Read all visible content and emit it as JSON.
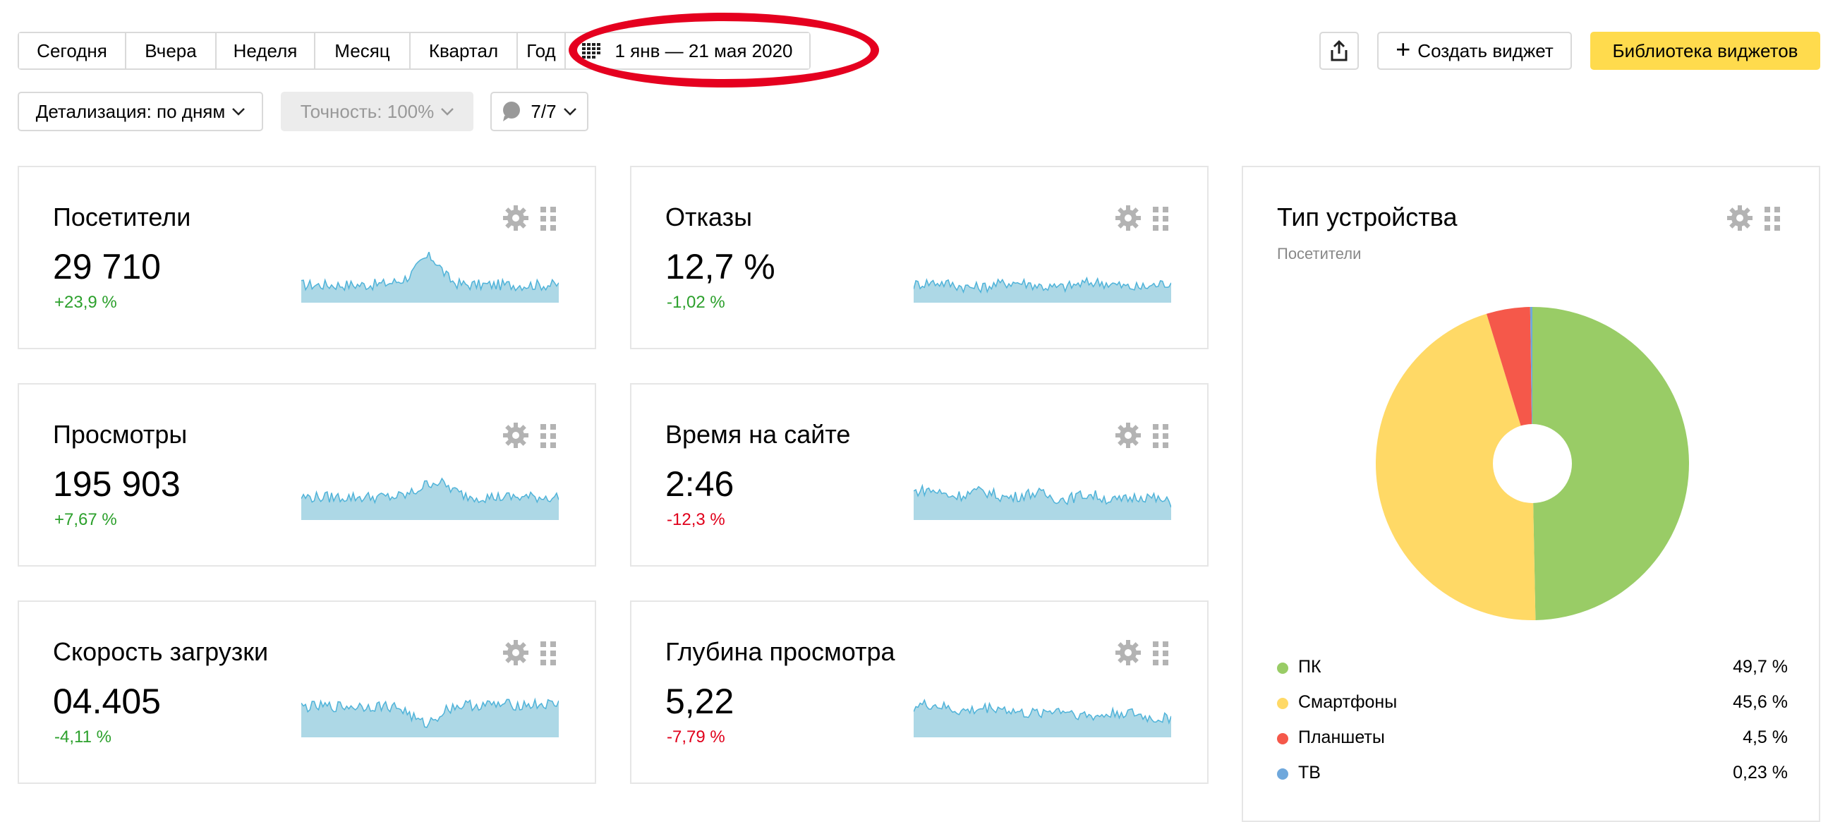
{
  "toolbar": {
    "periods": [
      "Сегодня",
      "Вчера",
      "Неделя",
      "Месяц",
      "Квартал",
      "Год"
    ],
    "date_range": "1 янв — 21 мая 2020",
    "share_icon": "share-icon",
    "create_widget_label": "Создать виджет",
    "widget_library_label": "Библиотека виджетов",
    "library_color": "#ffdb4d"
  },
  "filters": {
    "detail_label": "Детализация: по дням",
    "accuracy_label": "Точность: 100%",
    "segments_label": "7/7"
  },
  "widgets": [
    {
      "title": "Посетители",
      "value": "29 710",
      "delta": "+23,9 %",
      "trend": "up"
    },
    {
      "title": "Отказы",
      "value": "12,7 %",
      "delta": "-1,02 %",
      "trend": "up"
    },
    {
      "title": "Просмотры",
      "value": "195 903",
      "delta": "+7,67 %",
      "trend": "up"
    },
    {
      "title": "Время на сайте",
      "value": "2:46",
      "delta": "-12,3 %",
      "trend": "down"
    },
    {
      "title": "Скорость загрузки",
      "value": "04.405",
      "delta": "-4,11 %",
      "trend": "up"
    },
    {
      "title": "Глубина просмотра",
      "value": "5,22",
      "delta": "-7,79 %",
      "trend": "down"
    }
  ],
  "device": {
    "title": "Тип устройства",
    "subtitle": "Посетители",
    "legend": [
      {
        "name": "ПК",
        "value": "49,7 %",
        "color": "#99cc66"
      },
      {
        "name": "Смартфоны",
        "value": "45,6 %",
        "color": "#ffd966"
      },
      {
        "name": "Планшеты",
        "value": "4,5 %",
        "color": "#f5584a"
      },
      {
        "name": "ТВ",
        "value": "0,23 %",
        "color": "#6fa8dc"
      }
    ]
  },
  "chart_data": {
    "type": "pie",
    "categories": [
      "ПК",
      "Смартфоны",
      "Планшеты",
      "ТВ"
    ],
    "values": [
      49.7,
      45.6,
      4.5,
      0.23
    ]
  },
  "colors": {
    "positive": "#2ca02c",
    "negative": "#e0001b",
    "spark_fill": "#add8e6",
    "spark_line": "#4fb3d9",
    "highlight_ellipse": "#e5001f"
  }
}
